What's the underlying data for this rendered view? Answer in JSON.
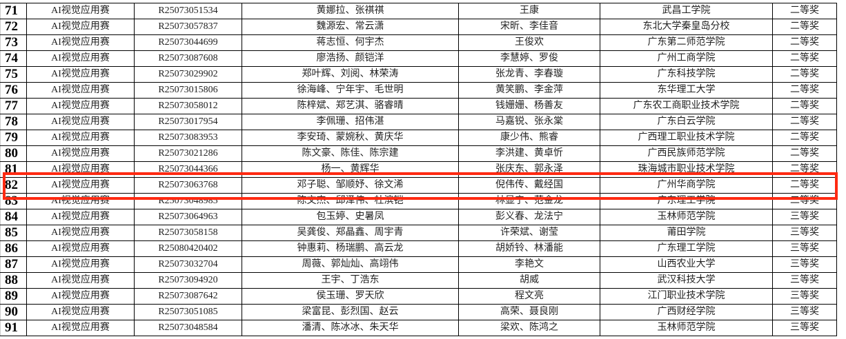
{
  "highlight_color": "#ff2a12",
  "highlighted_row": "82",
  "rows": [
    {
      "n": "71",
      "comp": "AI视觉应用赛",
      "id": "R25073051534",
      "members": "黄娜拉、张祺祺",
      "advisors": "王康",
      "school": "武昌工学院",
      "award": "二等奖"
    },
    {
      "n": "72",
      "comp": "AI视觉应用赛",
      "id": "R25073057837",
      "members": "魏源宏、常云潇",
      "advisors": "宋昕、李佳音",
      "school": "东北大学秦皇岛分校",
      "award": "二等奖"
    },
    {
      "n": "73",
      "comp": "AI视觉应用赛",
      "id": "R25073044699",
      "members": "蒋志恒、何宇杰",
      "advisors": "王俊欢",
      "school": "广东第二师范学院",
      "award": "二等奖"
    },
    {
      "n": "74",
      "comp": "AI视觉应用赛",
      "id": "R25073087608",
      "members": "廖浩扬、颜铠洋",
      "advisors": "李慧婷、罗俊",
      "school": "广州工商学院",
      "award": "二等奖"
    },
    {
      "n": "75",
      "comp": "AI视觉应用赛",
      "id": "R25073029902",
      "members": "郑叶辉、刘阅、林荣涛",
      "advisors": "张龙青、李春璇",
      "school": "广东科技学院",
      "award": "二等奖"
    },
    {
      "n": "76",
      "comp": "AI视觉应用赛",
      "id": "R25073015806",
      "members": "徐海峰、宁年宇、毛世明",
      "advisors": "黄笑鹏、李金萍",
      "school": "东华理工大学",
      "award": "二等奖"
    },
    {
      "n": "77",
      "comp": "AI视觉应用赛",
      "id": "R25073058012",
      "members": "陈梓斌、郑艺淇、骆睿晴",
      "advisors": "钱姗姗、杨善友",
      "school": "广东农工商职业技术学院",
      "award": "二等奖"
    },
    {
      "n": "78",
      "comp": "AI视觉应用赛",
      "id": "R25073017954",
      "members": "李佩珊、招伟湛",
      "advisors": "马嘉锐、张永棠",
      "school": "广东白云学院",
      "award": "二等奖"
    },
    {
      "n": "79",
      "comp": "AI视觉应用赛",
      "id": "R25073083953",
      "members": "李安琦、蒙婉秋、黄庆华",
      "advisors": "康少伟、熊睿",
      "school": "广西理工职业技术学院",
      "award": "二等奖"
    },
    {
      "n": "80",
      "comp": "AI视觉应用赛",
      "id": "R25073021286",
      "members": "陈文豪、陈佳、陈宗建",
      "advisors": "李洪建、黄卓忻",
      "school": "广西民族师范学院",
      "award": "二等奖"
    },
    {
      "n": "81",
      "comp": "AI视觉应用赛",
      "id": "R25073044366",
      "members": "杨一、黄辉华",
      "advisors": "张庆东、郭永泽",
      "school": "珠海城市职业技术学院",
      "award": "二等奖"
    },
    {
      "n": "82",
      "comp": "AI视觉应用赛",
      "id": "R25073063768",
      "members": "邓子聪、邹顺妤、徐文浠",
      "advisors": "倪伟传、戴经国",
      "school": "广州华商学院",
      "award": "二等奖"
    },
    {
      "n": "83",
      "comp": "AI视觉应用赛",
      "id": "R25073048985",
      "members": "陈文杰、邱泽伟、杜滨铠",
      "advisors": "林显宁、范金龙",
      "school": "广东理工学院",
      "award": "二等奖"
    },
    {
      "n": "84",
      "comp": "AI视觉应用赛",
      "id": "R25073064963",
      "members": "包玉婷、史暑凤",
      "advisors": "彭义春、龙法宁",
      "school": "玉林师范学院",
      "award": "三等奖"
    },
    {
      "n": "85",
      "comp": "AI视觉应用赛",
      "id": "R25073058158",
      "members": "吴龚俊、郑晶鑫、周宇青",
      "advisors": "许荣斌、谢莹",
      "school": "莆田学院",
      "award": "三等奖"
    },
    {
      "n": "86",
      "comp": "AI视觉应用赛",
      "id": "R25080420402",
      "members": "钟惠莉、杨瑞鹏、高云龙",
      "advisors": "胡娇铃、林潘能",
      "school": "广东理工学院",
      "award": "三等奖"
    },
    {
      "n": "87",
      "comp": "AI视觉应用赛",
      "id": "R25073032704",
      "members": "周薇、郭灿灿、高翊伟",
      "advisors": "李艳文",
      "school": "山西农业大学",
      "award": "三等奖"
    },
    {
      "n": "88",
      "comp": "AI视觉应用赛",
      "id": "R25073094920",
      "members": "王宇、丁浩东",
      "advisors": "胡威",
      "school": "武汉科技大学",
      "award": "三等奖"
    },
    {
      "n": "89",
      "comp": "AI视觉应用赛",
      "id": "R25073087642",
      "members": "侯玉珊、罗天欣",
      "advisors": "程文亮",
      "school": "江门职业技术学院",
      "award": "三等奖"
    },
    {
      "n": "90",
      "comp": "AI视觉应用赛",
      "id": "R25073051085",
      "members": "梁富昆、彭烈国、赵云",
      "advisors": "高荣、聂良刚",
      "school": "广西财经学院",
      "award": "三等奖"
    },
    {
      "n": "91",
      "comp": "AI视觉应用赛",
      "id": "R25073048584",
      "members": "潘清、陈冰冰、朱天华",
      "advisors": "梁欢、陈鸿之",
      "school": "玉林师范学院",
      "award": "三等奖"
    }
  ]
}
